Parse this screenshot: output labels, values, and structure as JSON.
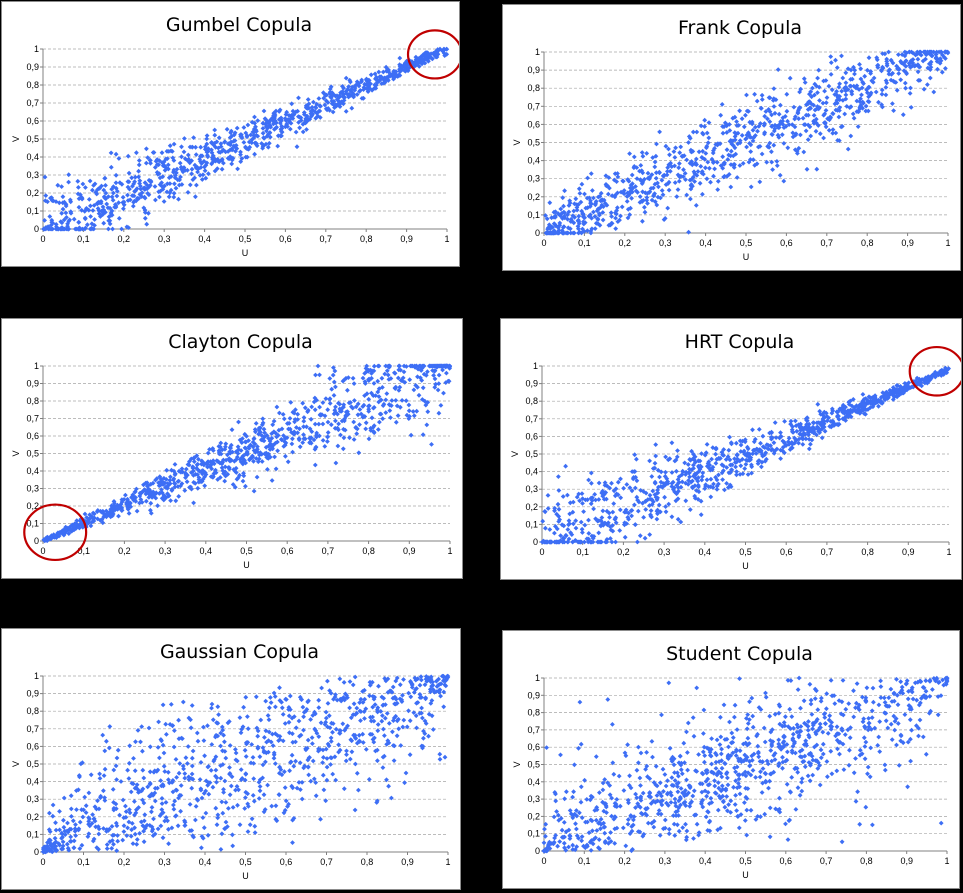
{
  "colors": {
    "marker": "#3d6ef5",
    "highlight": "#c00000",
    "background": "#000000",
    "panel": "#ffffff"
  },
  "chart_data": [
    {
      "type": "scatter",
      "title": "Gumbel Copula",
      "xlabel": "U",
      "ylabel": "V",
      "xlim": [
        0,
        1
      ],
      "ylim": [
        0,
        1
      ],
      "x_ticks": [
        "0",
        "0,1",
        "0,2",
        "0,3",
        "0,4",
        "0,5",
        "0,6",
        "0,7",
        "0,8",
        "0,9",
        "1"
      ],
      "y_ticks": [
        "0",
        "0,1",
        "0,2",
        "0,3",
        "0,4",
        "0,5",
        "0,6",
        "0,7",
        "0,8",
        "0,9",
        "1"
      ],
      "grid": "horizontal dashed",
      "marker": "diamond",
      "copula": "gumbel",
      "n_points": 950,
      "seed": 11,
      "highlight": {
        "x": 0.97,
        "y": 0.97,
        "radius": 0.07
      }
    },
    {
      "type": "scatter",
      "title": "Frank Copula",
      "xlabel": "U",
      "ylabel": "V",
      "xlim": [
        0,
        1
      ],
      "ylim": [
        0,
        1
      ],
      "x_ticks": [
        "0",
        "0,1",
        "0,2",
        "0,3",
        "0,4",
        "0,5",
        "0,6",
        "0,7",
        "0,8",
        "0,9",
        "1"
      ],
      "y_ticks": [
        "0",
        "0,1",
        "0,2",
        "0,3",
        "0,4",
        "0,5",
        "0,6",
        "0,7",
        "0,8",
        "0,9",
        "1"
      ],
      "grid": "horizontal dashed",
      "marker": "diamond",
      "copula": "frank",
      "n_points": 950,
      "seed": 23
    },
    {
      "type": "scatter",
      "title": "Clayton Copula",
      "xlabel": "U",
      "ylabel": "V",
      "xlim": [
        0,
        1
      ],
      "ylim": [
        0,
        1
      ],
      "x_ticks": [
        "0",
        "0,1",
        "0,2",
        "0,3",
        "0,4",
        "0,5",
        "0,6",
        "0,7",
        "0,8",
        "0,9",
        "1"
      ],
      "y_ticks": [
        "0",
        "0,1",
        "0,2",
        "0,3",
        "0,4",
        "0,5",
        "0,6",
        "0,7",
        "0,8",
        "0,9",
        "1"
      ],
      "grid": "horizontal dashed",
      "marker": "diamond",
      "copula": "clayton",
      "n_points": 950,
      "seed": 37,
      "highlight": {
        "x": 0.03,
        "y": 0.05,
        "radius": 0.08
      }
    },
    {
      "type": "scatter",
      "title": "HRT Copula",
      "xlabel": "U",
      "ylabel": "V",
      "xlim": [
        0,
        1
      ],
      "ylim": [
        0,
        1
      ],
      "x_ticks": [
        "0",
        "0,1",
        "0,2",
        "0,3",
        "0,4",
        "0,5",
        "0,6",
        "0,7",
        "0,8",
        "0,9",
        "1"
      ],
      "y_ticks": [
        "0",
        "0,1",
        "0,2",
        "0,3",
        "0,4",
        "0,5",
        "0,6",
        "0,7",
        "0,8",
        "0,9",
        "1"
      ],
      "grid": "horizontal dashed",
      "marker": "diamond",
      "copula": "hrt",
      "n_points": 950,
      "seed": 41,
      "highlight": {
        "x": 0.97,
        "y": 0.97,
        "radius": 0.07
      }
    },
    {
      "type": "scatter",
      "title": "Gaussian Copula",
      "xlabel": "U",
      "ylabel": "V",
      "xlim": [
        0,
        1
      ],
      "ylim": [
        0,
        1
      ],
      "x_ticks": [
        "0",
        "0,1",
        "0,2",
        "0,3",
        "0,4",
        "0,5",
        "0,6",
        "0,7",
        "0,8",
        "0,9",
        "1"
      ],
      "y_ticks": [
        "0",
        "0,1",
        "0,2",
        "0,3",
        "0,4",
        "0,5",
        "0,6",
        "0,7",
        "0,8",
        "0,9",
        "1"
      ],
      "grid": "horizontal dashed",
      "marker": "diamond",
      "copula": "gaussian",
      "n_points": 950,
      "seed": 53
    },
    {
      "type": "scatter",
      "title": "Student Copula",
      "xlabel": "U",
      "ylabel": "V",
      "xlim": [
        0,
        1
      ],
      "ylim": [
        0,
        1
      ],
      "x_ticks": [
        "0",
        "0,1",
        "0,2",
        "0,3",
        "0,4",
        "0,5",
        "0,6",
        "0,7",
        "0,8",
        "0,9",
        "1"
      ],
      "y_ticks": [
        "0",
        "0,1",
        "0,2",
        "0,3",
        "0,4",
        "0,5",
        "0,6",
        "0,7",
        "0,8",
        "0,9",
        "1"
      ],
      "grid": "horizontal dashed",
      "marker": "diamond",
      "copula": "student",
      "n_points": 950,
      "seed": 67
    }
  ]
}
